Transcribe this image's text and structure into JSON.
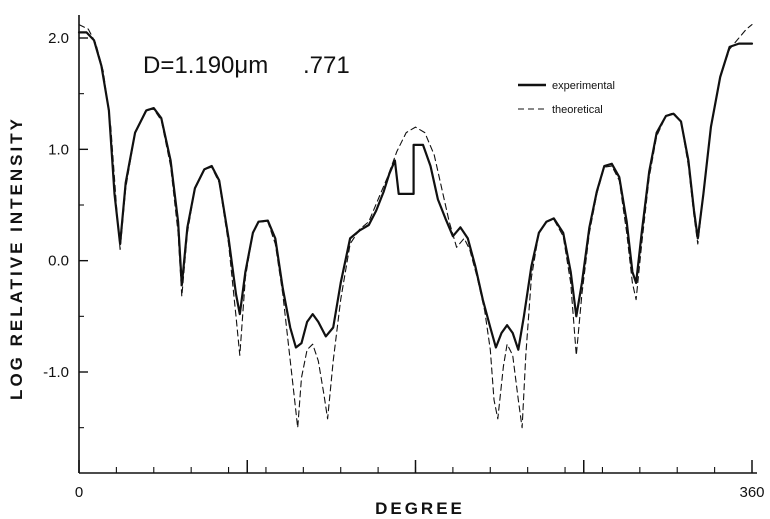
{
  "chart_data": {
    "type": "line",
    "title": "",
    "annotation": {
      "diameter": "D=1.190μm",
      "value": ".771"
    },
    "xlabel": "DEGREE",
    "ylabel": "LOG RELATIVE INTENSITY",
    "xlim": [
      0,
      360
    ],
    "ylim": [
      -1.9,
      2.2
    ],
    "x_tick_labels": [
      {
        "value": 0,
        "label": "0"
      },
      {
        "value": 360,
        "label": "360"
      }
    ],
    "x_minor_ticks": [
      20,
      40,
      60,
      80,
      100,
      120,
      140,
      160,
      180,
      200,
      220,
      240,
      260,
      280,
      300,
      320,
      340
    ],
    "x_major_ticks": [
      90,
      180,
      270
    ],
    "y_ticks": [
      {
        "value": 2.0,
        "label": "2.0"
      },
      {
        "value": 1.0,
        "label": "1.0"
      },
      {
        "value": 0.0,
        "label": "0.0"
      },
      {
        "value": -1.0,
        "label": "-1.0"
      }
    ],
    "legend_position": "top-right",
    "grid": false,
    "series": [
      {
        "name": "experimental",
        "style": "solid",
        "color": "#111111",
        "points": [
          [
            0,
            2.05
          ],
          [
            4,
            2.05
          ],
          [
            8,
            1.98
          ],
          [
            12,
            1.75
          ],
          [
            16,
            1.35
          ],
          [
            19,
            0.6
          ],
          [
            22,
            0.15
          ],
          [
            25,
            0.7
          ],
          [
            30,
            1.15
          ],
          [
            36,
            1.35
          ],
          [
            40,
            1.37
          ],
          [
            44,
            1.28
          ],
          [
            49,
            0.9
          ],
          [
            53,
            0.35
          ],
          [
            55,
            -0.22
          ],
          [
            58,
            0.3
          ],
          [
            62,
            0.65
          ],
          [
            67,
            0.82
          ],
          [
            71,
            0.85
          ],
          [
            75,
            0.72
          ],
          [
            80,
            0.2
          ],
          [
            84,
            -0.3
          ],
          [
            86,
            -0.48
          ],
          [
            89,
            -0.1
          ],
          [
            93,
            0.25
          ],
          [
            96,
            0.35
          ],
          [
            101,
            0.36
          ],
          [
            105,
            0.2
          ],
          [
            109,
            -0.25
          ],
          [
            113,
            -0.6
          ],
          [
            116,
            -0.78
          ],
          [
            119,
            -0.74
          ],
          [
            122,
            -0.55
          ],
          [
            125,
            -0.48
          ],
          [
            128,
            -0.55
          ],
          [
            132,
            -0.68
          ],
          [
            136,
            -0.6
          ],
          [
            140,
            -0.2
          ],
          [
            145,
            0.2
          ],
          [
            150,
            0.27
          ],
          [
            155,
            0.32
          ],
          [
            159,
            0.45
          ],
          [
            163,
            0.62
          ],
          [
            166,
            0.78
          ],
          [
            169,
            0.9
          ],
          [
            171,
            0.6
          ],
          [
            179,
            0.6
          ],
          [
            179,
            1.04
          ],
          [
            184,
            1.04
          ],
          [
            188,
            0.85
          ],
          [
            192,
            0.55
          ],
          [
            196,
            0.38
          ],
          [
            200,
            0.22
          ],
          [
            204,
            0.3
          ],
          [
            208,
            0.2
          ],
          [
            212,
            -0.05
          ],
          [
            216,
            -0.35
          ],
          [
            220,
            -0.6
          ],
          [
            223,
            -0.78
          ],
          [
            226,
            -0.65
          ],
          [
            229,
            -0.58
          ],
          [
            232,
            -0.65
          ],
          [
            235,
            -0.8
          ],
          [
            238,
            -0.5
          ],
          [
            242,
            -0.05
          ],
          [
            246,
            0.25
          ],
          [
            250,
            0.35
          ],
          [
            254,
            0.38
          ],
          [
            259,
            0.25
          ],
          [
            263,
            -0.1
          ],
          [
            266,
            -0.5
          ],
          [
            269,
            -0.2
          ],
          [
            273,
            0.3
          ],
          [
            277,
            0.62
          ],
          [
            281,
            0.85
          ],
          [
            285,
            0.87
          ],
          [
            289,
            0.75
          ],
          [
            293,
            0.35
          ],
          [
            296,
            -0.1
          ],
          [
            298,
            -0.2
          ],
          [
            301,
            0.25
          ],
          [
            305,
            0.8
          ],
          [
            309,
            1.15
          ],
          [
            314,
            1.3
          ],
          [
            318,
            1.32
          ],
          [
            322,
            1.25
          ],
          [
            326,
            0.9
          ],
          [
            329,
            0.45
          ],
          [
            331,
            0.2
          ],
          [
            334,
            0.6
          ],
          [
            338,
            1.2
          ],
          [
            343,
            1.65
          ],
          [
            348,
            1.92
          ],
          [
            353,
            1.95
          ],
          [
            360,
            1.95
          ]
        ]
      },
      {
        "name": "theoretical",
        "style": "dashed",
        "color": "#111111",
        "points": [
          [
            0,
            2.12
          ],
          [
            5,
            2.08
          ],
          [
            9,
            1.95
          ],
          [
            13,
            1.7
          ],
          [
            17,
            1.2
          ],
          [
            20,
            0.5
          ],
          [
            22,
            0.1
          ],
          [
            25,
            0.65
          ],
          [
            30,
            1.15
          ],
          [
            36,
            1.36
          ],
          [
            40,
            1.36
          ],
          [
            44,
            1.26
          ],
          [
            49,
            0.85
          ],
          [
            53,
            0.25
          ],
          [
            55,
            -0.32
          ],
          [
            58,
            0.25
          ],
          [
            62,
            0.65
          ],
          [
            67,
            0.82
          ],
          [
            71,
            0.84
          ],
          [
            75,
            0.7
          ],
          [
            80,
            0.15
          ],
          [
            84,
            -0.5
          ],
          [
            86,
            -0.85
          ],
          [
            89,
            -0.15
          ],
          [
            93,
            0.25
          ],
          [
            96,
            0.35
          ],
          [
            101,
            0.35
          ],
          [
            105,
            0.15
          ],
          [
            109,
            -0.3
          ],
          [
            112,
            -0.75
          ],
          [
            115,
            -1.2
          ],
          [
            117,
            -1.5
          ],
          [
            119,
            -1.05
          ],
          [
            122,
            -0.8
          ],
          [
            125,
            -0.75
          ],
          [
            128,
            -0.9
          ],
          [
            131,
            -1.2
          ],
          [
            133,
            -1.42
          ],
          [
            136,
            -0.9
          ],
          [
            140,
            -0.35
          ],
          [
            145,
            0.15
          ],
          [
            150,
            0.28
          ],
          [
            155,
            0.35
          ],
          [
            160,
            0.55
          ],
          [
            165,
            0.75
          ],
          [
            170,
            0.98
          ],
          [
            175,
            1.15
          ],
          [
            180,
            1.2
          ],
          [
            185,
            1.15
          ],
          [
            190,
            0.95
          ],
          [
            194,
            0.65
          ],
          [
            198,
            0.35
          ],
          [
            202,
            0.12
          ],
          [
            206,
            0.2
          ],
          [
            209,
            0.1
          ],
          [
            213,
            -0.15
          ],
          [
            217,
            -0.45
          ],
          [
            220,
            -0.8
          ],
          [
            222,
            -1.25
          ],
          [
            224,
            -1.42
          ],
          [
            227,
            -0.95
          ],
          [
            229,
            -0.75
          ],
          [
            232,
            -0.85
          ],
          [
            235,
            -1.25
          ],
          [
            237,
            -1.5
          ],
          [
            239,
            -0.85
          ],
          [
            242,
            -0.15
          ],
          [
            246,
            0.25
          ],
          [
            250,
            0.35
          ],
          [
            254,
            0.37
          ],
          [
            259,
            0.22
          ],
          [
            263,
            -0.2
          ],
          [
            266,
            -0.85
          ],
          [
            269,
            -0.3
          ],
          [
            273,
            0.25
          ],
          [
            277,
            0.6
          ],
          [
            281,
            0.84
          ],
          [
            285,
            0.85
          ],
          [
            289,
            0.72
          ],
          [
            293,
            0.25
          ],
          [
            296,
            -0.2
          ],
          [
            298,
            -0.35
          ],
          [
            301,
            0.15
          ],
          [
            305,
            0.75
          ],
          [
            309,
            1.12
          ],
          [
            314,
            1.3
          ],
          [
            318,
            1.33
          ],
          [
            322,
            1.25
          ],
          [
            326,
            0.85
          ],
          [
            329,
            0.4
          ],
          [
            331,
            0.15
          ],
          [
            334,
            0.6
          ],
          [
            338,
            1.2
          ],
          [
            343,
            1.65
          ],
          [
            348,
            1.9
          ],
          [
            353,
            2.0
          ],
          [
            357,
            2.08
          ],
          [
            360,
            2.12
          ]
        ]
      }
    ]
  }
}
